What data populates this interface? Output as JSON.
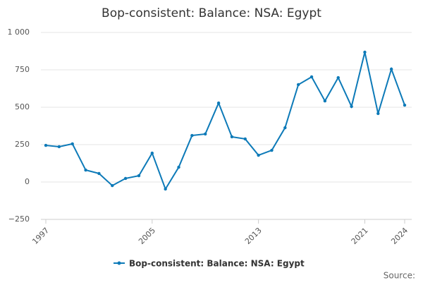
{
  "chart_data": {
    "type": "line",
    "title": "Bop-consistent: Balance: NSA: Egypt",
    "x": [
      1997,
      1998,
      1999,
      2000,
      2001,
      2002,
      2003,
      2004,
      2005,
      2006,
      2007,
      2008,
      2009,
      2010,
      2011,
      2012,
      2013,
      2014,
      2015,
      2016,
      2017,
      2018,
      2019,
      2020,
      2021,
      2022,
      2023,
      2024
    ],
    "series": [
      {
        "name": "Bop-consistent: Balance: NSA: Egypt",
        "color": "#0d7ab8",
        "values": [
          245,
          236,
          255,
          80,
          57,
          -24,
          24,
          42,
          193,
          -47,
          99,
          311,
          321,
          528,
          302,
          288,
          179,
          212,
          363,
          651,
          703,
          542,
          698,
          505,
          868,
          458,
          755,
          514
        ]
      }
    ],
    "xlim": [
      1997,
      2024
    ],
    "xticks": [
      1997,
      2005,
      2013,
      2021,
      2024
    ],
    "ylim": [
      -250,
      1000
    ],
    "yticks": [
      {
        "value": -250,
        "label": "−250"
      },
      0,
      250,
      500,
      750,
      {
        "value": 1000,
        "label": "1 000"
      }
    ],
    "grid": true,
    "source": "Source:"
  }
}
